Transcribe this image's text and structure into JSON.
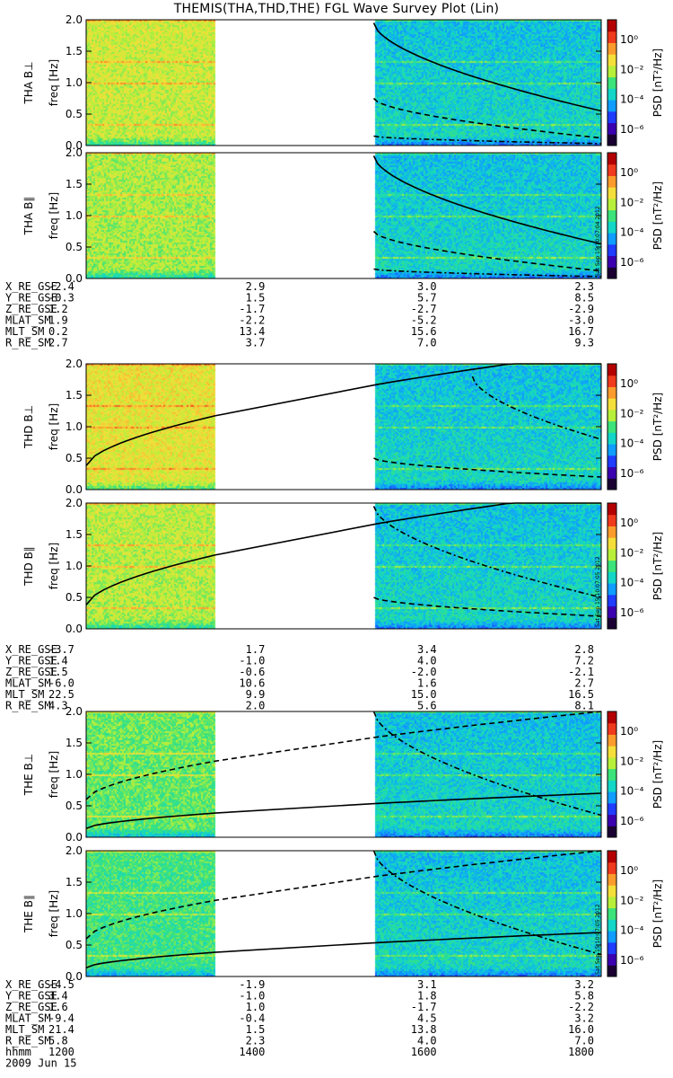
{
  "title": "THEMIS(THA,THD,THE) FGL Wave Survey Plot (Lin)",
  "colors": {
    "colormap": [
      "#1a0033",
      "#3b00b0",
      "#1f3cff",
      "#0f9dff",
      "#12d6c8",
      "#3be37a",
      "#b8ef3a",
      "#f4df3a",
      "#fb9b2d",
      "#f03a1d",
      "#b40000"
    ],
    "gap": "#ffffff",
    "curve": "#000000"
  },
  "colorbar": {
    "label": "PSD [nT²/Hz]",
    "ticks": [
      "10⁰",
      "10⁻²",
      "10⁻⁴",
      "10⁻⁶"
    ]
  },
  "chart_data": [
    {
      "type": "heatmap",
      "probe": "THA",
      "component": "B⊥",
      "ylabel": "THA B⊥",
      "ysublabel": "freq [Hz]",
      "ylim": [
        0,
        2.0
      ],
      "yticks": [
        "0.0",
        "0.5",
        "1.0",
        "1.5",
        "2.0"
      ],
      "xlim_hhmm": [
        1200,
        1800
      ],
      "data_gap_hhmm": [
        1330,
        1521
      ],
      "stamp": ""
    },
    {
      "type": "heatmap",
      "probe": "THA",
      "component": "B∥",
      "ylabel": "THA B∥",
      "ysublabel": "freq [Hz]",
      "ylim": [
        0,
        2.0
      ],
      "yticks": [
        "0.0",
        "0.5",
        "1.0",
        "1.5",
        "2.0"
      ],
      "xlim_hhmm": [
        1200,
        1800
      ],
      "data_gap_hhmm": [
        1330,
        1521
      ],
      "stamp": "Sat Sep 15 10:07:04 2012"
    },
    {
      "type": "heatmap",
      "probe": "THD",
      "component": "B⊥",
      "ylabel": "THD B⊥",
      "ysublabel": "freq [Hz]",
      "ylim": [
        0,
        2.0
      ],
      "yticks": [
        "0.0",
        "0.5",
        "1.0",
        "1.5",
        "2.0"
      ],
      "xlim_hhmm": [
        1200,
        1800
      ],
      "data_gap_hhmm": [
        1330,
        1521
      ],
      "stamp": ""
    },
    {
      "type": "heatmap",
      "probe": "THD",
      "component": "B∥",
      "ylabel": "THD B∥",
      "ysublabel": "freq [Hz]",
      "ylim": [
        0,
        2.0
      ],
      "yticks": [
        "0.0",
        "0.5",
        "1.0",
        "1.5",
        "2.0"
      ],
      "xlim_hhmm": [
        1200,
        1800
      ],
      "data_gap_hhmm": [
        1330,
        1521
      ],
      "stamp": "Sat Sep 15 10:07:05 2012"
    },
    {
      "type": "heatmap",
      "probe": "THE",
      "component": "B⊥",
      "ylabel": "THE B⊥",
      "ysublabel": "freq [Hz]",
      "ylim": [
        0,
        2.0
      ],
      "yticks": [
        "0.0",
        "0.5",
        "1.0",
        "1.5",
        "2.0"
      ],
      "xlim_hhmm": [
        1200,
        1800
      ],
      "data_gap_hhmm": [
        1330,
        1521
      ],
      "stamp": ""
    },
    {
      "type": "heatmap",
      "probe": "THE",
      "component": "B∥",
      "ylabel": "THE B∥",
      "ysublabel": "freq [Hz]",
      "ylim": [
        0,
        2.0
      ],
      "yticks": [
        "0.0",
        "0.5",
        "1.0",
        "1.5",
        "2.0"
      ],
      "xlim_hhmm": [
        1200,
        1800
      ],
      "data_gap_hhmm": [
        1330,
        1521
      ],
      "stamp": "Sat Sep 15 10:07:05 2012"
    }
  ],
  "ephemeris": [
    {
      "rows": [
        {
          "label": "X_RE_GSE",
          "values": [
            "-2.4",
            "2.9",
            "3.0",
            "2.3"
          ]
        },
        {
          "label": "Y_RE_GSE",
          "values": [
            "-0.3",
            "1.5",
            "5.7",
            "8.5"
          ]
        },
        {
          "label": "Z_RE_GSE",
          "values": [
            "1.2",
            "-1.7",
            "-2.7",
            "-2.9"
          ]
        },
        {
          "label": "MLAT_SM",
          "values": [
            "1.9",
            "-2.2",
            "-5.2",
            "-3.0"
          ]
        },
        {
          "label": "MLT_SM",
          "values": [
            "0.2",
            "13.4",
            "15.6",
            "16.7"
          ]
        },
        {
          "label": "R_RE_SM",
          "values": [
            "2.7",
            "3.7",
            "7.0",
            "9.3"
          ]
        }
      ]
    },
    {
      "rows": [
        {
          "label": "X_RE_GSE",
          "values": [
            "-3.7",
            "1.7",
            "3.4",
            "2.8"
          ]
        },
        {
          "label": "Y_RE_GSE",
          "values": [
            "1.4",
            "-1.0",
            "4.0",
            "7.2"
          ]
        },
        {
          "label": "Z_RE_GSE",
          "values": [
            "1.5",
            "-0.6",
            "-2.0",
            "-2.1"
          ]
        },
        {
          "label": "MLAT_SM",
          "values": [
            "-6.0",
            "10.6",
            "1.6",
            "2.7"
          ]
        },
        {
          "label": "MLT_SM",
          "values": [
            "22.5",
            "9.9",
            "15.0",
            "16.5"
          ]
        },
        {
          "label": "R_RE_SM",
          "values": [
            "4.3",
            "2.0",
            "5.6",
            "8.1"
          ]
        }
      ]
    },
    {
      "rows": [
        {
          "label": "X_RE_GSE",
          "values": [
            "-4.5",
            "-1.9",
            "3.1",
            "3.2"
          ]
        },
        {
          "label": "Y_RE_GSE",
          "values": [
            "3.4",
            "-1.0",
            "1.8",
            "5.8"
          ]
        },
        {
          "label": "Z_RE_GSE",
          "values": [
            "1.6",
            "1.0",
            "-1.7",
            "-2.2"
          ]
        },
        {
          "label": "MLAT_SM",
          "values": [
            "-9.4",
            "-0.4",
            "4.5",
            "3.2"
          ]
        },
        {
          "label": "MLT_SM",
          "values": [
            "21.4",
            "1.5",
            "13.8",
            "16.0"
          ]
        },
        {
          "label": "R_RE_SM",
          "values": [
            "5.8",
            "2.3",
            "4.0",
            "7.0"
          ]
        },
        {
          "label": "hhmm",
          "values": [
            "1200",
            "1400",
            "1600",
            "1800"
          ]
        }
      ],
      "date": "2009 Jun 15"
    }
  ]
}
